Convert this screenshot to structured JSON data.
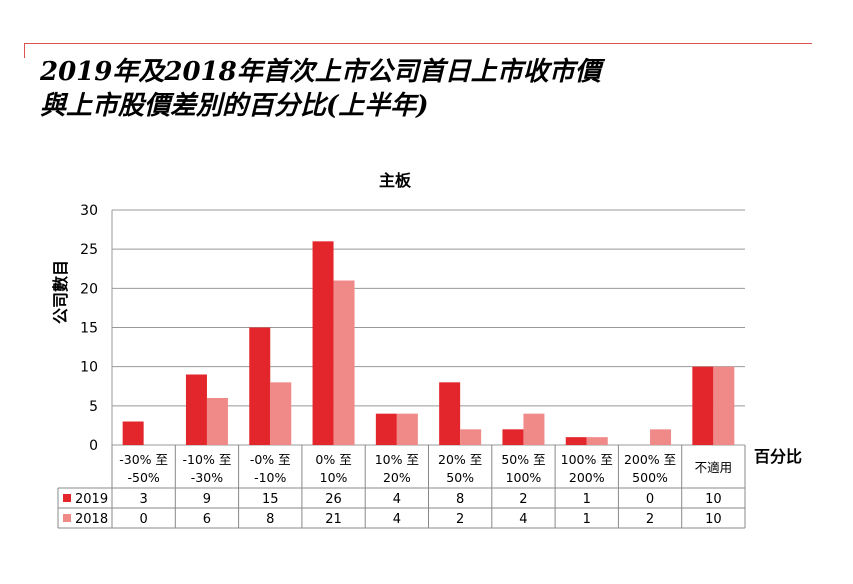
{
  "headline": {
    "line1": "2019年及2018年首次上市公司首日上市收市價",
    "line2": "與上市股價差別的百分比(上半年)"
  },
  "chart_data": {
    "type": "bar",
    "title": "主板",
    "xlabel": "百分比",
    "ylabel": "公司數目",
    "ylim": [
      0,
      30
    ],
    "yticks": [
      0,
      5,
      10,
      15,
      20,
      25,
      30
    ],
    "grid": true,
    "legend": "table-left",
    "categories": [
      [
        "-30% 至",
        "-50%"
      ],
      [
        "-10% 至",
        "-30%"
      ],
      [
        "-0% 至",
        "-10%"
      ],
      [
        "0% 至",
        "10%"
      ],
      [
        "10% 至",
        "20%"
      ],
      [
        "20% 至",
        "50%"
      ],
      [
        "50% 至",
        "100%"
      ],
      [
        "100% 至",
        "200%"
      ],
      [
        "200% 至",
        "500%"
      ],
      [
        "不適用"
      ]
    ],
    "series": [
      {
        "name": "2019",
        "color": "#e3262b",
        "values": [
          3,
          9,
          15,
          26,
          4,
          8,
          2,
          1,
          0,
          10
        ]
      },
      {
        "name": "2018",
        "color": "#f08a88",
        "values": [
          0,
          6,
          8,
          21,
          4,
          2,
          4,
          1,
          2,
          10
        ]
      }
    ]
  },
  "colors": {
    "accent_line": "#d9534f",
    "grid": "#999999",
    "table_border": "#888888"
  }
}
